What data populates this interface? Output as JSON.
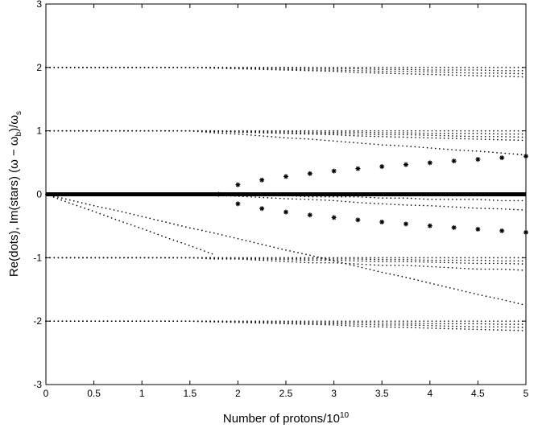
{
  "chart_data": {
    "type": "scatter",
    "xlabel": {
      "text": "Number of protons/10",
      "sup": "10"
    },
    "ylabel": [
      "Re(dots), Im(stars) (ω − ω",
      "b",
      ")/ω",
      "s"
    ],
    "xlim": [
      0,
      5
    ],
    "ylim": [
      -3,
      3
    ],
    "xticks": [
      0,
      0.5,
      1,
      1.5,
      2,
      2.5,
      3,
      3.5,
      4,
      4.5,
      5
    ],
    "yticks": [
      -3,
      -2,
      -1,
      0,
      1,
      2,
      3
    ],
    "grid": false,
    "x": [
      0,
      0.25,
      0.5,
      0.75,
      1,
      1.25,
      1.5,
      1.75,
      2,
      2.25,
      2.5,
      2.75,
      3,
      3.25,
      3.5,
      3.75,
      4,
      4.25,
      4.5,
      4.75,
      5
    ],
    "series": [
      {
        "marker": "dots",
        "color": "#000000",
        "values": [
          2,
          2,
          2,
          2,
          2,
          2,
          2,
          2,
          2,
          2,
          2,
          2,
          2,
          2,
          2,
          2,
          2,
          2,
          2,
          2,
          2
        ]
      },
      {
        "marker": "dots",
        "color": "#000000",
        "values": [
          2,
          2,
          2,
          2,
          2,
          2,
          2,
          2.0,
          1.99,
          1.99,
          1.99,
          1.98,
          1.98,
          1.98,
          1.97,
          1.97,
          1.96,
          1.96,
          1.96,
          1.95,
          1.95
        ]
      },
      {
        "marker": "dots",
        "color": "#000000",
        "values": [
          2,
          2,
          2,
          2,
          2,
          2,
          2,
          1.99,
          1.99,
          1.98,
          1.97,
          1.96,
          1.96,
          1.95,
          1.94,
          1.94,
          1.93,
          1.92,
          1.91,
          1.91,
          1.9
        ]
      },
      {
        "marker": "dots",
        "color": "#000000",
        "values": [
          2,
          2,
          2,
          2,
          2,
          2,
          2,
          1.99,
          1.98,
          1.97,
          1.96,
          1.95,
          1.94,
          1.92,
          1.91,
          1.9,
          1.89,
          1.88,
          1.87,
          1.86,
          1.85
        ]
      },
      {
        "marker": "dots",
        "color": "#000000",
        "values": [
          1,
          1,
          1,
          1,
          1,
          1,
          1,
          1,
          1,
          1,
          1,
          1,
          1,
          1,
          1,
          1,
          1,
          1,
          1,
          1,
          1
        ]
      },
      {
        "marker": "dots",
        "color": "#000000",
        "values": [
          1,
          1,
          1,
          1,
          1,
          1,
          1,
          1.0,
          0.99,
          0.99,
          0.99,
          0.98,
          0.98,
          0.98,
          0.97,
          0.97,
          0.96,
          0.96,
          0.96,
          0.95,
          0.95
        ]
      },
      {
        "marker": "dots",
        "color": "#000000",
        "values": [
          1,
          1,
          1,
          1,
          1,
          1,
          1,
          0.99,
          0.99,
          0.98,
          0.97,
          0.96,
          0.96,
          0.95,
          0.94,
          0.94,
          0.93,
          0.92,
          0.91,
          0.91,
          0.9
        ]
      },
      {
        "marker": "dots",
        "color": "#000000",
        "values": [
          1,
          1,
          1,
          1,
          1,
          1,
          1,
          0.99,
          0.98,
          0.97,
          0.96,
          0.95,
          0.94,
          0.92,
          0.91,
          0.9,
          0.89,
          0.88,
          0.87,
          0.86,
          0.85
        ]
      },
      {
        "marker": "dots",
        "color": "#000000",
        "values": [
          1,
          1,
          1,
          1,
          1,
          1,
          1,
          0.97,
          0.95,
          0.92,
          0.89,
          0.87,
          0.84,
          0.81,
          0.78,
          0.76,
          0.73,
          0.7,
          0.68,
          0.65,
          0.62
        ]
      },
      {
        "marker": "dots",
        "color": "#000000",
        "values": [
          0,
          0,
          0,
          0,
          0,
          0,
          0,
          0,
          -0.02,
          -0.02,
          -0.02,
          -0.04,
          -0.04,
          -0.04,
          -0.06,
          -0.06,
          -0.08,
          -0.08,
          -0.08,
          -0.1,
          -0.1
        ]
      },
      {
        "marker": "dots",
        "color": "#000000",
        "values": [
          0,
          0,
          0,
          0,
          0,
          0,
          0,
          -0.02,
          -0.03,
          -0.05,
          -0.07,
          -0.08,
          -0.1,
          -0.13,
          -0.15,
          -0.17,
          -0.18,
          -0.2,
          -0.22,
          -0.23,
          -0.25
        ]
      },
      {
        "marker": "dots",
        "color": "#000000",
        "values": [
          0,
          -0.14,
          -0.27,
          -0.41,
          -0.54,
          -0.68,
          -0.81,
          -0.95,
          null,
          null,
          null,
          null,
          null,
          null,
          null,
          null,
          null,
          null,
          null,
          null,
          null
        ]
      },
      {
        "marker": "dots",
        "color": "#000000",
        "values": [
          0,
          -0.09,
          -0.18,
          -0.26,
          -0.35,
          -0.44,
          -0.53,
          -0.61,
          -0.7,
          -0.79,
          -0.88,
          -0.96,
          -1.05,
          -1.14,
          -1.23,
          -1.31,
          -1.4,
          -1.49,
          -1.58,
          -1.66,
          -1.75
        ]
      },
      {
        "marker": "dots",
        "color": "#000000",
        "values": [
          -1,
          -1,
          -1,
          -1,
          -1,
          -1,
          -1,
          -1,
          -1,
          -1,
          -1,
          -1,
          -1,
          -1,
          -1,
          -1,
          -1,
          -1,
          -1,
          -1,
          -1
        ]
      },
      {
        "marker": "dots",
        "color": "#000000",
        "values": [
          -1,
          -1,
          -1,
          -1,
          -1,
          -1,
          -1,
          -1.0,
          -1.01,
          -1.01,
          -1.01,
          -1.02,
          -1.02,
          -1.02,
          -1.03,
          -1.03,
          -1.04,
          -1.04,
          -1.04,
          -1.05,
          -1.05
        ]
      },
      {
        "marker": "dots",
        "color": "#000000",
        "values": [
          -1,
          -1,
          -1,
          -1,
          -1,
          -1,
          -1,
          -1.01,
          -1.01,
          -1.02,
          -1.03,
          -1.04,
          -1.04,
          -1.05,
          -1.06,
          -1.06,
          -1.07,
          -1.08,
          -1.09,
          -1.09,
          -1.1
        ]
      },
      {
        "marker": "dots",
        "color": "#000000",
        "values": [
          -1,
          -1,
          -1,
          -1,
          -1,
          -1,
          -1,
          -1.02,
          -1.02,
          -1.04,
          -1.06,
          -1.08,
          -1.08,
          -1.1,
          -1.12,
          -1.12,
          -1.14,
          -1.16,
          -1.18,
          -1.18,
          -1.2
        ]
      },
      {
        "marker": "dots",
        "color": "#000000",
        "values": [
          -2,
          -2,
          -2,
          -2,
          -2,
          -2,
          -2,
          -2,
          -2,
          -2,
          -2,
          -2,
          -2,
          -2,
          -2,
          -2,
          -2,
          -2,
          -2,
          -2,
          -2
        ]
      },
      {
        "marker": "dots",
        "color": "#000000",
        "values": [
          -2,
          -2,
          -2,
          -2,
          -2,
          -2,
          -2,
          -2.0,
          -2.01,
          -2.01,
          -2.01,
          -2.02,
          -2.02,
          -2.02,
          -2.03,
          -2.03,
          -2.04,
          -2.04,
          -2.04,
          -2.05,
          -2.05
        ]
      },
      {
        "marker": "dots",
        "color": "#000000",
        "values": [
          -2,
          -2,
          -2,
          -2,
          -2,
          -2,
          -2,
          -2.01,
          -2.01,
          -2.02,
          -2.03,
          -2.04,
          -2.04,
          -2.05,
          -2.06,
          -2.06,
          -2.07,
          -2.08,
          -2.09,
          -2.09,
          -2.1
        ]
      },
      {
        "marker": "dots",
        "color": "#000000",
        "values": [
          -2,
          -2,
          -2,
          -2,
          -2,
          -2,
          -2,
          -2.01,
          -2.02,
          -2.03,
          -2.04,
          -2.05,
          -2.06,
          -2.08,
          -2.09,
          -2.1,
          -2.11,
          -2.12,
          -2.13,
          -2.14,
          -2.15
        ]
      },
      {
        "marker": "line",
        "color": "#000000",
        "width": 5,
        "values": [
          0,
          0,
          0,
          0,
          0,
          0,
          0,
          0,
          0,
          0,
          0,
          0,
          0,
          0,
          0,
          0,
          0,
          0,
          0,
          0,
          0
        ]
      },
      {
        "marker": "stars",
        "color": "#000000",
        "x": [
          1.8,
          2,
          2.25,
          2.5,
          2.75,
          3,
          3.25,
          3.5,
          3.75,
          4,
          4.25,
          4.5,
          4.75,
          5
        ],
        "values": [
          0,
          0.15,
          0.225,
          0.28,
          0.327,
          0.367,
          0.404,
          0.437,
          0.468,
          0.497,
          0.525,
          0.551,
          0.576,
          0.6
        ]
      },
      {
        "marker": "stars",
        "color": "#000000",
        "x": [
          1.8,
          2,
          2.25,
          2.5,
          2.75,
          3,
          3.25,
          3.5,
          3.75,
          4,
          4.25,
          4.5,
          4.75,
          5
        ],
        "values": [
          0,
          -0.15,
          -0.225,
          -0.28,
          -0.327,
          -0.367,
          -0.404,
          -0.437,
          -0.468,
          -0.497,
          -0.525,
          -0.551,
          -0.576,
          -0.6
        ]
      }
    ]
  }
}
